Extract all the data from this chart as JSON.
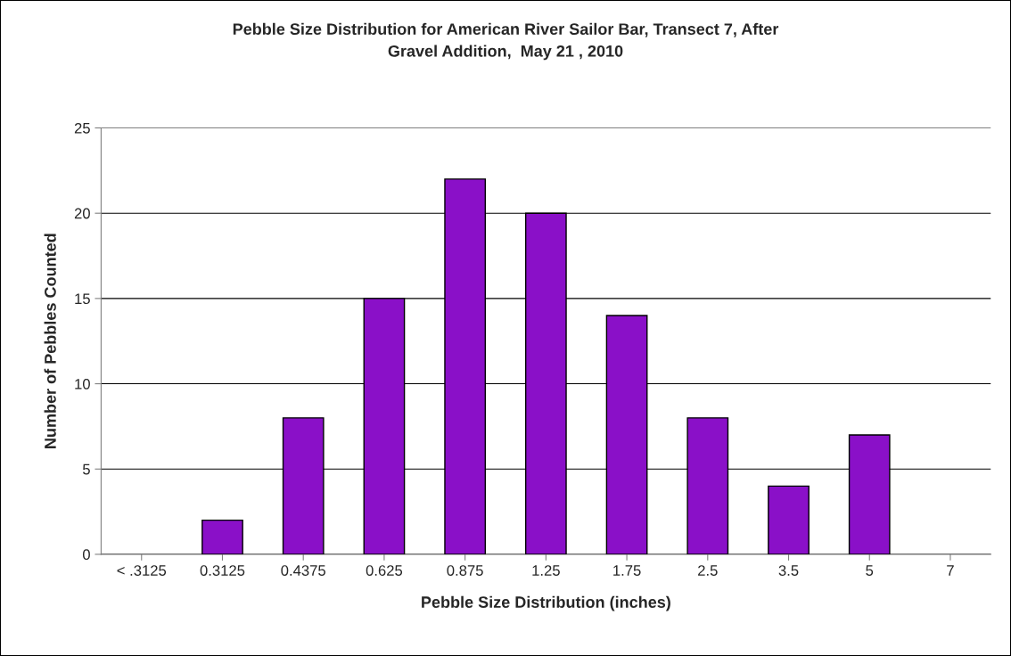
{
  "chart_data": {
    "type": "bar",
    "title": "Pebble Size Distribution for American River Sailor Bar, Transect 7, After\nGravel Addition,  May 21 , 2010",
    "xlabel": "Pebble Size Distribution (inches)",
    "ylabel": "Number of Pebbles Counted",
    "categories": [
      "< .3125",
      "0.3125",
      "0.4375",
      "0.625",
      "0.875",
      "1.25",
      "1.75",
      "2.5",
      "3.5",
      "5",
      "7"
    ],
    "values": [
      0,
      2,
      8,
      15,
      22,
      20,
      14,
      8,
      4,
      7,
      0
    ],
    "color": "#8a10c8",
    "ylim": [
      0,
      25
    ],
    "yticks": [
      0,
      5,
      10,
      15,
      20,
      25
    ],
    "grid": "y",
    "legend": false
  }
}
